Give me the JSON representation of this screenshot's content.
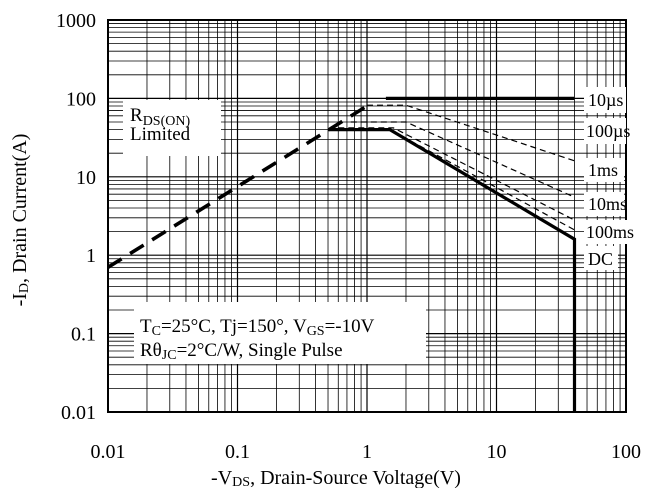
{
  "chart_data": {
    "type": "line",
    "title": "",
    "xlabel": {
      "prefix": "-V",
      "sub": "DS",
      "rest": ", Drain-Source Voltage(V)"
    },
    "ylabel": {
      "prefix": "-I",
      "sub": "D",
      "rest": ", Drain Current(A)"
    },
    "x_scale": "log",
    "y_scale": "log",
    "xlim": [
      0.01,
      100
    ],
    "ylim": [
      0.01,
      1000
    ],
    "x_ticks": [
      0.01,
      0.1,
      1,
      10,
      100
    ],
    "x_tick_labels": [
      "0.01",
      "0.1",
      "1",
      "10",
      "100"
    ],
    "y_ticks": [
      0.01,
      0.1,
      1,
      10,
      100,
      1000
    ],
    "y_tick_labels": [
      "0.01",
      "0.1",
      "1",
      "10",
      "100",
      "1000"
    ],
    "grid": true,
    "series": [
      {
        "name": "RDS(ON) Limited",
        "style": "thick-dashed",
        "x": [
          0.01,
          1.0
        ],
        "y": [
          0.7,
          80
        ]
      },
      {
        "name": "10µs",
        "style": "solid-thick",
        "x": [
          1.4,
          40,
          40
        ],
        "y": [
          100,
          100,
          100
        ]
      },
      {
        "name": "100µs",
        "style": "thin-dashed",
        "x": [
          1.0,
          2.0,
          40
        ],
        "y": [
          82,
          82,
          16
        ]
      },
      {
        "name": "1ms",
        "style": "thin-dashed",
        "x": [
          0.75,
          2.0,
          40
        ],
        "y": [
          50,
          50,
          5.5
        ]
      },
      {
        "name": "10ms",
        "style": "thin-dashed",
        "x": [
          0.6,
          1.6,
          40
        ],
        "y": [
          42,
          42,
          2.8
        ]
      },
      {
        "name": "100ms",
        "style": "thin-dashed",
        "x": [
          0.55,
          1.5,
          40
        ],
        "y": [
          40,
          40,
          2.1
        ]
      },
      {
        "name": "DC",
        "style": "solid-thick",
        "x": [
          0.5,
          1.5,
          40,
          40
        ],
        "y": [
          40,
          40,
          1.6,
          0.01
        ]
      }
    ],
    "series_labels": [
      "10µs",
      "100µs",
      "1ms",
      "10ms",
      "100ms",
      "DC"
    ],
    "annotations": {
      "rds_line1": {
        "main": "R",
        "sub": "DS(ON)"
      },
      "rds_line2": "Limited",
      "cond_line1": {
        "a": "T",
        "a_sub": "C",
        "b": "=25°C, Tj=150°, V",
        "b_sub": "GS",
        "c": "=-10V"
      },
      "cond_line2": {
        "a": "Rθ",
        "a_sub": "JC",
        "b": "=2°C/W, Single Pulse"
      }
    }
  }
}
